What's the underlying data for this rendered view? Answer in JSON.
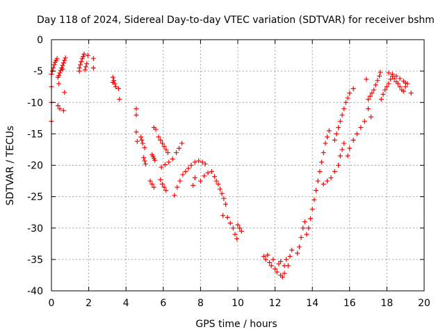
{
  "chart_data": {
    "type": "scatter",
    "title": "Day 118 of 2024, Sidereal Day-to-day VTEC variation (SDTVAR) for receiver bshm",
    "xlabel": "GPS time / hours",
    "ylabel": "SDTVAR / TECUs",
    "xlim": [
      0,
      20
    ],
    "ylim": [
      -40,
      0
    ],
    "xticks": [
      0,
      2,
      4,
      6,
      8,
      10,
      12,
      14,
      16,
      18,
      20
    ],
    "yticks": [
      0,
      -5,
      -10,
      -15,
      -20,
      -25,
      -30,
      -35,
      -40
    ],
    "grid": true,
    "marker": "plus",
    "color": "#ff0000",
    "series": [
      {
        "name": "SDTVAR",
        "points": [
          [
            0.0,
            -13.0
          ],
          [
            0.0,
            -10.0
          ],
          [
            0.0,
            -7.5
          ],
          [
            0.0,
            -5.5
          ],
          [
            0.05,
            -5.0
          ],
          [
            0.1,
            -4.5
          ],
          [
            0.15,
            -4.0
          ],
          [
            0.2,
            -3.6
          ],
          [
            0.25,
            -3.3
          ],
          [
            0.3,
            -3.0
          ],
          [
            0.35,
            -6.0
          ],
          [
            0.4,
            -5.7
          ],
          [
            0.45,
            -5.3
          ],
          [
            0.5,
            -4.9
          ],
          [
            0.55,
            -4.5
          ],
          [
            0.6,
            -4.1
          ],
          [
            0.65,
            -3.7
          ],
          [
            0.7,
            -3.3
          ],
          [
            0.75,
            -2.9
          ],
          [
            0.35,
            -10.5
          ],
          [
            0.45,
            -11.0
          ],
          [
            0.65,
            -11.3
          ],
          [
            0.4,
            -7.0
          ],
          [
            0.6,
            -4.7
          ],
          [
            0.7,
            -8.4
          ],
          [
            1.5,
            -5.0
          ],
          [
            1.5,
            -4.5
          ],
          [
            1.55,
            -4.0
          ],
          [
            1.6,
            -3.5
          ],
          [
            1.65,
            -3.0
          ],
          [
            1.7,
            -2.7
          ],
          [
            1.75,
            -2.3
          ],
          [
            1.8,
            -4.8
          ],
          [
            1.85,
            -4.3
          ],
          [
            1.9,
            -3.8
          ],
          [
            1.95,
            -2.5
          ],
          [
            2.25,
            -3.0
          ],
          [
            2.25,
            -4.5
          ],
          [
            3.3,
            -6.0
          ],
          [
            3.35,
            -6.5
          ],
          [
            3.4,
            -7.0
          ],
          [
            3.45,
            -7.5
          ],
          [
            3.3,
            -6.8
          ],
          [
            3.6,
            -7.8
          ],
          [
            3.65,
            -9.5
          ],
          [
            4.55,
            -11.0
          ],
          [
            4.55,
            -12.0
          ],
          [
            4.55,
            -14.7
          ],
          [
            4.6,
            -16.2
          ],
          [
            4.8,
            -15.5
          ],
          [
            4.85,
            -16.0
          ],
          [
            4.9,
            -16.5
          ],
          [
            5.0,
            -17.2
          ],
          [
            4.95,
            -18.8
          ],
          [
            5.0,
            -19.3
          ],
          [
            5.05,
            -19.8
          ],
          [
            5.5,
            -14.0
          ],
          [
            5.6,
            -14.3
          ],
          [
            5.4,
            -18.3
          ],
          [
            5.45,
            -18.6
          ],
          [
            5.5,
            -18.9
          ],
          [
            5.55,
            -19.2
          ],
          [
            5.75,
            -15.5
          ],
          [
            5.85,
            -16.0
          ],
          [
            5.95,
            -16.5
          ],
          [
            6.05,
            -17.0
          ],
          [
            6.15,
            -17.5
          ],
          [
            6.25,
            -18.0
          ],
          [
            5.4,
            -23.0
          ],
          [
            5.5,
            -23.5
          ],
          [
            5.3,
            -22.5
          ],
          [
            5.85,
            -22.3
          ],
          [
            5.95,
            -23.0
          ],
          [
            6.05,
            -23.5
          ],
          [
            6.15,
            -24.0
          ],
          [
            5.9,
            -20.3
          ],
          [
            6.1,
            -19.9
          ],
          [
            6.3,
            -19.5
          ],
          [
            6.5,
            -19.0
          ],
          [
            6.7,
            -18.0
          ],
          [
            6.85,
            -17.3
          ],
          [
            7.0,
            -16.5
          ],
          [
            6.6,
            -24.8
          ],
          [
            6.75,
            -23.5
          ],
          [
            6.9,
            -22.5
          ],
          [
            7.05,
            -21.5
          ],
          [
            7.2,
            -21.0
          ],
          [
            7.35,
            -20.5
          ],
          [
            7.5,
            -20.0
          ],
          [
            7.7,
            -19.5
          ],
          [
            7.9,
            -19.3
          ],
          [
            8.1,
            -19.5
          ],
          [
            8.25,
            -19.8
          ],
          [
            7.6,
            -23.2
          ],
          [
            7.7,
            -22.0
          ],
          [
            8.0,
            -22.5
          ],
          [
            8.2,
            -21.7
          ],
          [
            8.4,
            -21.2
          ],
          [
            8.6,
            -21.0
          ],
          [
            8.75,
            -21.8
          ],
          [
            8.85,
            -22.5
          ],
          [
            8.95,
            -23.0
          ],
          [
            9.05,
            -23.8
          ],
          [
            9.15,
            -24.5
          ],
          [
            9.25,
            -25.3
          ],
          [
            9.35,
            -26.2
          ],
          [
            9.2,
            -28.0
          ],
          [
            9.45,
            -28.3
          ],
          [
            9.6,
            -29.2
          ],
          [
            9.75,
            -30.0
          ],
          [
            9.85,
            -31.0
          ],
          [
            9.95,
            -31.7
          ],
          [
            10.0,
            -29.5
          ],
          [
            10.1,
            -30.0
          ],
          [
            10.2,
            -30.5
          ],
          [
            11.4,
            -34.5
          ],
          [
            11.5,
            -35.0
          ],
          [
            11.6,
            -34.3
          ],
          [
            11.7,
            -35.5
          ],
          [
            11.8,
            -36.0
          ],
          [
            11.9,
            -35.0
          ],
          [
            12.0,
            -36.5
          ],
          [
            12.1,
            -37.0
          ],
          [
            12.2,
            -35.7
          ],
          [
            12.3,
            -37.5
          ],
          [
            12.4,
            -37.8
          ],
          [
            12.5,
            -36.0
          ],
          [
            12.6,
            -35.0
          ],
          [
            12.7,
            -36.0
          ],
          [
            12.8,
            -34.5
          ],
          [
            12.9,
            -33.5
          ],
          [
            12.5,
            -37.2
          ],
          [
            12.3,
            -35.3
          ],
          [
            13.2,
            -34.0
          ],
          [
            13.3,
            -33.0
          ],
          [
            13.4,
            -31.5
          ],
          [
            13.5,
            -30.0
          ],
          [
            13.6,
            -29.0
          ],
          [
            13.7,
            -31.0
          ],
          [
            13.8,
            -30.0
          ],
          [
            13.9,
            -28.5
          ],
          [
            14.0,
            -27.0
          ],
          [
            14.1,
            -25.5
          ],
          [
            14.2,
            -24.0
          ],
          [
            14.3,
            -22.5
          ],
          [
            14.4,
            -21.0
          ],
          [
            14.5,
            -19.5
          ],
          [
            14.6,
            -18.0
          ],
          [
            14.7,
            -16.5
          ],
          [
            14.8,
            -15.5
          ],
          [
            14.9,
            -14.5
          ],
          [
            14.6,
            -23.0
          ],
          [
            14.8,
            -22.5
          ],
          [
            15.0,
            -22.0
          ],
          [
            15.2,
            -21.0
          ],
          [
            15.4,
            -20.0
          ],
          [
            15.5,
            -18.5
          ],
          [
            15.6,
            -17.5
          ],
          [
            15.7,
            -16.5
          ],
          [
            15.2,
            -16.0
          ],
          [
            15.3,
            -15.0
          ],
          [
            15.4,
            -14.0
          ],
          [
            15.5,
            -13.0
          ],
          [
            15.6,
            -12.0
          ],
          [
            15.7,
            -11.0
          ],
          [
            15.8,
            -10.0
          ],
          [
            15.9,
            -9.3
          ],
          [
            16.0,
            -8.5
          ],
          [
            16.2,
            -7.8
          ],
          [
            15.9,
            -18.5
          ],
          [
            16.0,
            -17.3
          ],
          [
            16.2,
            -16.0
          ],
          [
            16.4,
            -15.0
          ],
          [
            16.6,
            -14.0
          ],
          [
            16.8,
            -13.0
          ],
          [
            16.9,
            -6.3
          ],
          [
            17.0,
            -9.5
          ],
          [
            17.1,
            -9.0
          ],
          [
            17.2,
            -8.5
          ],
          [
            17.3,
            -8.0
          ],
          [
            17.4,
            -7.2
          ],
          [
            17.5,
            -6.5
          ],
          [
            17.6,
            -5.8
          ],
          [
            17.65,
            -5.2
          ],
          [
            17.7,
            -9.5
          ],
          [
            17.8,
            -8.7
          ],
          [
            17.9,
            -8.0
          ],
          [
            18.0,
            -7.5
          ],
          [
            18.1,
            -7.0
          ],
          [
            18.2,
            -6.3
          ],
          [
            18.3,
            -5.8
          ],
          [
            18.4,
            -6.2
          ],
          [
            18.5,
            -6.7
          ],
          [
            18.6,
            -7.0
          ],
          [
            18.7,
            -7.5
          ],
          [
            18.8,
            -8.0
          ],
          [
            18.9,
            -8.2
          ],
          [
            19.0,
            -7.5
          ],
          [
            19.1,
            -7.0
          ],
          [
            19.3,
            -8.5
          ],
          [
            18.1,
            -5.3
          ],
          [
            18.3,
            -5.5
          ],
          [
            18.5,
            -5.8
          ],
          [
            18.7,
            -6.2
          ],
          [
            18.9,
            -6.6
          ],
          [
            19.0,
            -6.9
          ],
          [
            17.15,
            -12.3
          ],
          [
            17.0,
            -11.0
          ]
        ]
      }
    ]
  }
}
